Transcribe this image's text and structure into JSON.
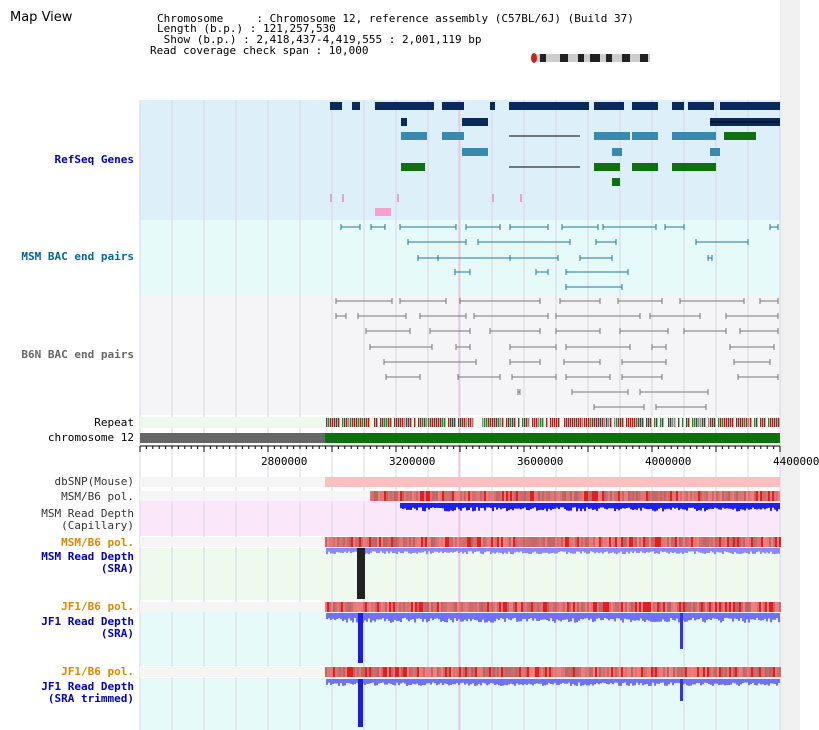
{
  "map_view": {
    "title": "Map View",
    "header_lines": [
      "Chromosome     : Chromosome 12, reference assembly (C57BL/6J) (Build 37)",
      "Length (b.p.) : 121,257,530",
      " Show (b.p.) : 2,418,437-4,419,555 : 2,001,119 bp",
      "Read coverage check span : 10,000"
    ]
  },
  "tracks": {
    "refseq": {
      "label": "RefSeq Genes",
      "color": "#0000cc"
    },
    "msm_bac": {
      "label": "MSM BAC end pairs",
      "color": "#006699"
    },
    "b6n_bac": {
      "label": "B6N BAC end pairs",
      "color": "#555555"
    },
    "repeat": {
      "label": "Repeat"
    },
    "chromosome": {
      "label": "chromosome 12"
    },
    "dbsnp": {
      "label": "dbSNP(Mouse)"
    },
    "msm_b6_pol": {
      "label": "MSM/B6 pol."
    },
    "msm_depth_cap": {
      "label": "MSM Read Depth\n(Capillary)"
    },
    "msm_b6_pol2": {
      "label": "MSM/B6 pol."
    },
    "msm_depth_sra": {
      "label": "MSM Read Depth\n(SRA)"
    },
    "jf1_b6_pol": {
      "label": "JF1/B6 pol."
    },
    "jf1_depth_sra": {
      "label": "JF1 Read Depth\n(SRA)"
    },
    "jf1_b6_pol2": {
      "label": "JF1/B6 pol."
    },
    "jf1_depth_trim": {
      "label": "JF1 Read Depth\n(SRA trimmed)"
    }
  },
  "axis": {
    "ticks": [
      "2800000",
      "3200000",
      "3600000",
      "4000000",
      "4400000"
    ]
  },
  "colors": {
    "refseq_bg": "#ddf0fa",
    "bac_bg": "#e6fafa",
    "b6n_bg": "#f5f5f8",
    "gene_dark": "#0a2a5a",
    "gene_mid": "#3a8ab0",
    "gene_green": "#107010",
    "pol_red": "#ee3333",
    "depth_blue": "#1a1aee",
    "depth_light": "#8888ff",
    "orange_label": "#dd8800"
  }
}
